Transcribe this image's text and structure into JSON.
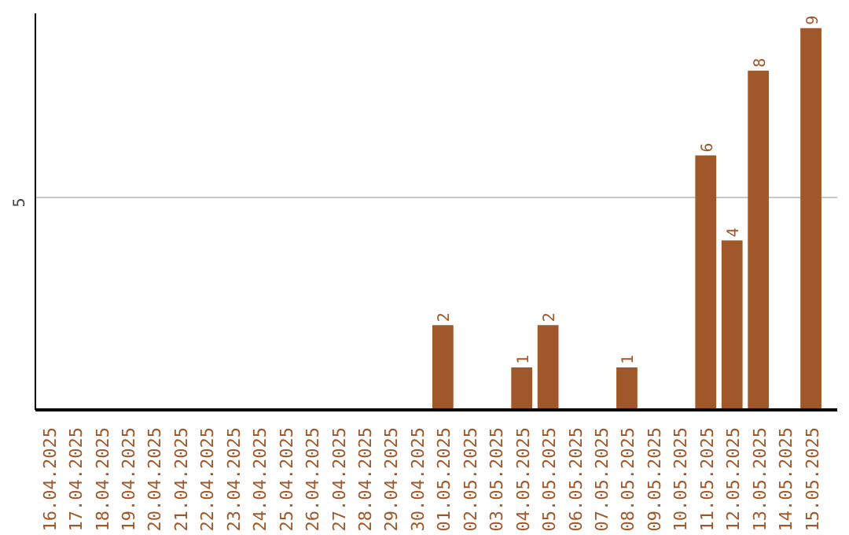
{
  "chart_data": {
    "type": "bar",
    "categories": [
      "16.04.2025",
      "17.04.2025",
      "18.04.2025",
      "19.04.2025",
      "20.04.2025",
      "21.04.2025",
      "22.04.2025",
      "23.04.2025",
      "24.04.2025",
      "25.04.2025",
      "26.04.2025",
      "27.04.2025",
      "28.04.2025",
      "29.04.2025",
      "30.04.2025",
      "01.05.2025",
      "02.05.2025",
      "03.05.2025",
      "04.05.2025",
      "05.05.2025",
      "06.05.2025",
      "07.05.2025",
      "08.05.2025",
      "09.05.2025",
      "10.05.2025",
      "11.05.2025",
      "12.05.2025",
      "13.05.2025",
      "14.05.2025",
      "15.05.2025"
    ],
    "values": [
      null,
      null,
      null,
      null,
      null,
      null,
      null,
      null,
      null,
      null,
      null,
      null,
      null,
      null,
      null,
      2,
      null,
      null,
      1,
      2,
      null,
      null,
      1,
      null,
      null,
      6,
      4,
      8,
      null,
      9
    ],
    "data_labels": true,
    "color": "#a0582a",
    "ylim": [
      0,
      9.35
    ],
    "yticks": [
      5
    ],
    "grid": "y"
  }
}
